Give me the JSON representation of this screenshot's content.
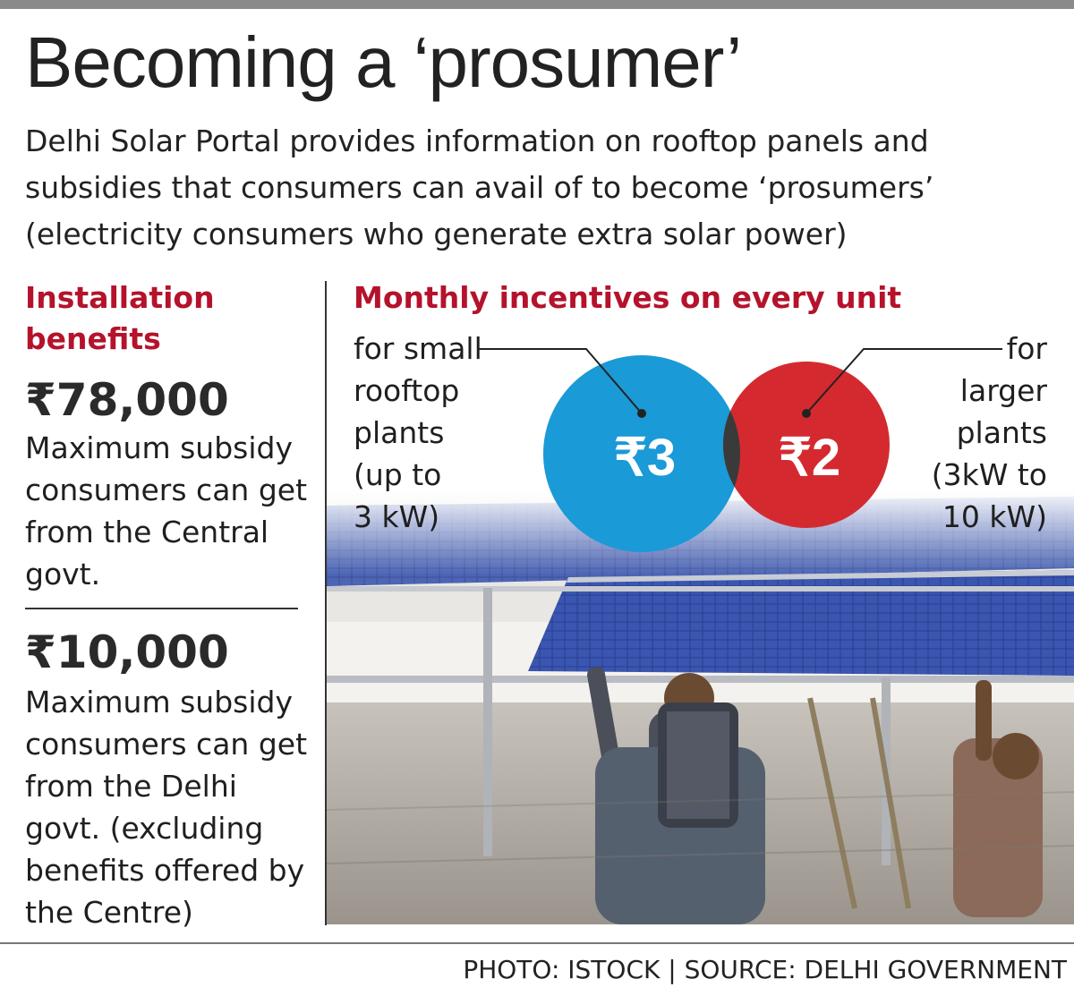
{
  "title": "Becoming a ‘prosumer’",
  "subtitle": "Delhi Solar Portal provides information on rooftop panels and subsidies that consumers can avail of to become ‘prosumers’ (electricity consumers who generate extra solar power)",
  "installation": {
    "heading_line1": "Installation",
    "heading_line2": "benefits",
    "items": [
      {
        "amount": "₹78,000",
        "description": "Maximum subsidy consumers can get from the Central govt."
      },
      {
        "amount": "₹10,000",
        "description": "Maximum subsidy consumers can get from the Delhi govt. (excluding benefits offered by the Centre)"
      }
    ]
  },
  "incentives": {
    "heading": "Monthly incentives on every unit",
    "small": {
      "value": "₹3",
      "note_lines": [
        "for small",
        "rooftop",
        "plants",
        "(up to",
        "3 kW)"
      ],
      "color": "#1a9ad6"
    },
    "large": {
      "value": "₹2",
      "note_lines": [
        "for",
        "larger",
        "plants",
        "(3kW to",
        "10 kW)"
      ],
      "color": "#d42a2f"
    }
  },
  "credit": "PHOTO: ISTOCK | SOURCE: DELHI GOVERNMENT",
  "colors": {
    "accent": "#b5122b",
    "overlap": "#3a3a3a"
  }
}
